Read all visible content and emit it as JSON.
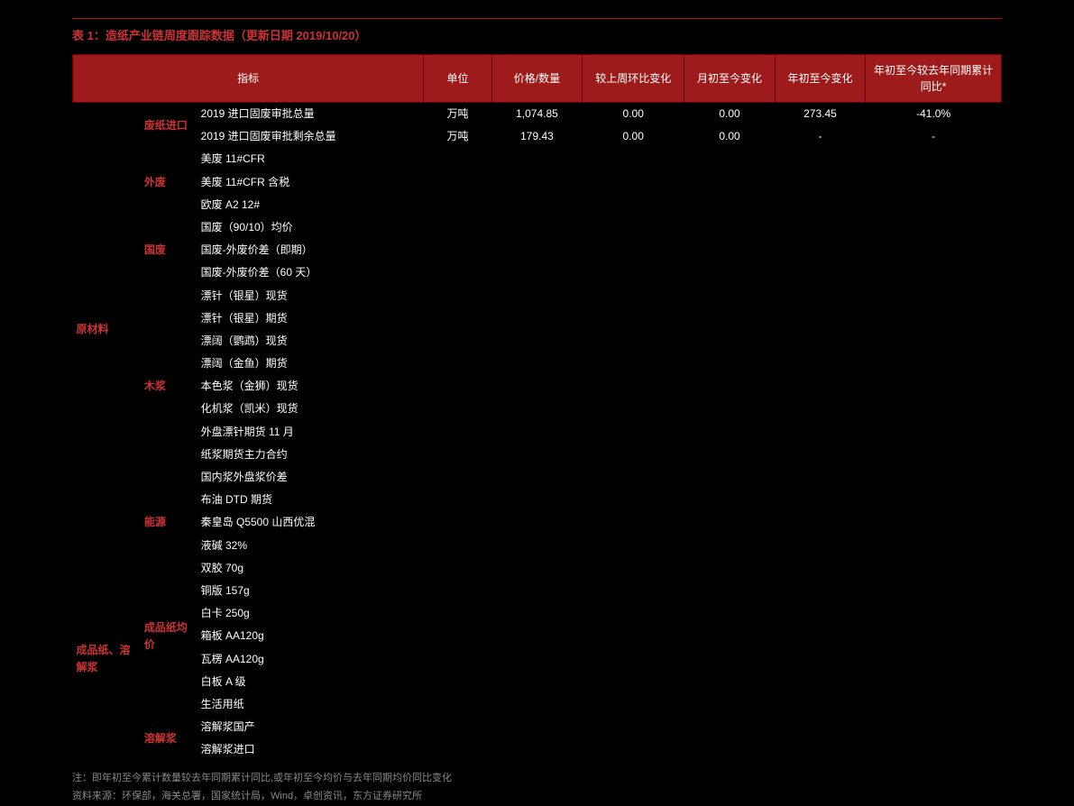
{
  "title": "表 1：造纸产业链周度跟踪数据（更新日期 2019/10/20）",
  "headers": {
    "indicator": "指标",
    "unit": "单位",
    "value": "价格/数量",
    "wow": "较上周环比变化",
    "mtd": "月初至今变化",
    "ytd": "年初至今变化",
    "yoy": "年初至今较去年同期累计同比*"
  },
  "categories": {
    "raw": "原材料",
    "finished": "成品纸、溶解浆",
    "s_wastepaper_import": "废纸进口",
    "s_foreign_waste": "外废",
    "s_domestic_waste": "国废",
    "s_wood_pulp": "木浆",
    "s_energy": "能源",
    "s_finished_avg": "成品纸均价",
    "s_dissolving": "溶解浆"
  },
  "rows": [
    [
      "2019 进口固废审批总量",
      "万吨",
      "1,074.85",
      "0.00",
      "0.00",
      "273.45",
      "-41.0%"
    ],
    [
      "2019 进口固废审批剩余总量",
      "万吨",
      "179.43",
      "0.00",
      "0.00",
      "-",
      "-"
    ],
    [
      "美废 11#CFR",
      "",
      "",
      "",
      "",
      "",
      ""
    ],
    [
      "美废 11#CFR 含税",
      "",
      "",
      "",
      "",
      "",
      ""
    ],
    [
      "欧废 A2 12#",
      "",
      "",
      "",
      "",
      "",
      ""
    ],
    [
      "国废（90/10）均价",
      "",
      "",
      "",
      "",
      "",
      ""
    ],
    [
      "国废-外废价差（即期）",
      "",
      "",
      "",
      "",
      "",
      ""
    ],
    [
      "国废-外废价差（60 天）",
      "",
      "",
      "",
      "",
      "",
      ""
    ],
    [
      "漂针（银星）现货",
      "",
      "",
      "",
      "",
      "",
      ""
    ],
    [
      "漂针（银星）期货",
      "",
      "",
      "",
      "",
      "",
      ""
    ],
    [
      "漂阔（鹦鹉）现货",
      "",
      "",
      "",
      "",
      "",
      ""
    ],
    [
      "漂阔（金鱼）期货",
      "",
      "",
      "",
      "",
      "",
      ""
    ],
    [
      "本色浆（金狮）现货",
      "",
      "",
      "",
      "",
      "",
      ""
    ],
    [
      "化机浆（凯米）现货",
      "",
      "",
      "",
      "",
      "",
      ""
    ],
    [
      "外盘漂针期货 11 月",
      "",
      "",
      "",
      "",
      "",
      ""
    ],
    [
      "纸浆期货主力合约",
      "",
      "",
      "",
      "",
      "",
      ""
    ],
    [
      "国内浆外盘浆价差",
      "",
      "",
      "",
      "",
      "",
      ""
    ],
    [
      "布油 DTD 期货",
      "",
      "",
      "",
      "",
      "",
      ""
    ],
    [
      "秦皇岛 Q5500 山西优混",
      "",
      "",
      "",
      "",
      "",
      ""
    ],
    [
      "液碱 32%",
      "",
      "",
      "",
      "",
      "",
      ""
    ],
    [
      "双胶 70g",
      "",
      "",
      "",
      "",
      "",
      ""
    ],
    [
      "铜版 157g",
      "",
      "",
      "",
      "",
      "",
      ""
    ],
    [
      "白卡 250g",
      "",
      "",
      "",
      "",
      "",
      ""
    ],
    [
      "箱板 AA120g",
      "",
      "",
      "",
      "",
      "",
      ""
    ],
    [
      "瓦楞 AA120g",
      "",
      "",
      "",
      "",
      "",
      ""
    ],
    [
      "白板 A 级",
      "",
      "",
      "",
      "",
      "",
      ""
    ],
    [
      "生活用纸",
      "",
      "",
      "",
      "",
      "",
      ""
    ],
    [
      "溶解浆国产",
      "",
      "",
      "",
      "",
      "",
      ""
    ],
    [
      "溶解浆进口",
      "",
      "",
      "",
      "",
      "",
      ""
    ]
  ],
  "note1": "注：即年初至今累计数量较去年同期累计同比,或年初至今均价与去年同期均价同比变化",
  "note2": "资料来源：环保部，海关总署，国家统计局，Wind，卓创资讯，东方证券研究所"
}
